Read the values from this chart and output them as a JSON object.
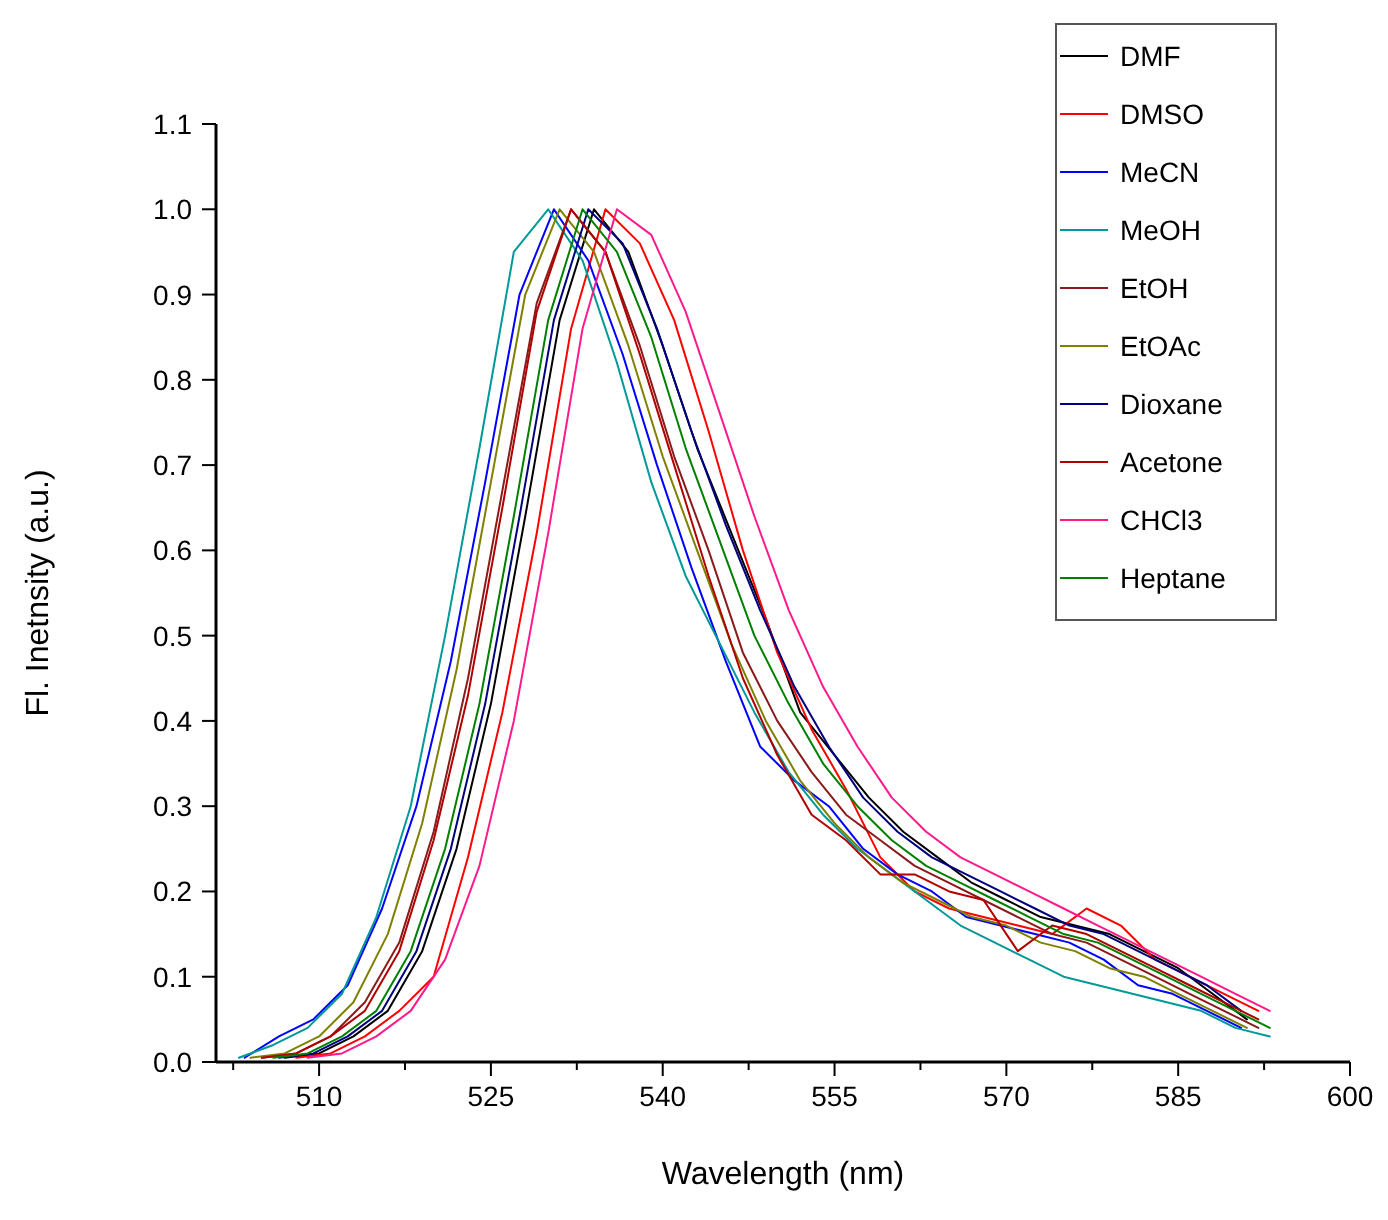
{
  "chart_data": {
    "type": "line",
    "xlabel": "Wavelength (nm)",
    "ylabel": "Fl. Inetnsity (a.u.)",
    "xlim": [
      501,
      600
    ],
    "ylim": [
      0,
      1.1
    ],
    "xticks": [
      {
        "value": 502.5,
        "label": null
      },
      510,
      {
        "value": 517.5,
        "label": null
      },
      525,
      {
        "value": 532.5,
        "label": null
      },
      540,
      {
        "value": 547.5,
        "label": null
      },
      555,
      {
        "value": 562.5,
        "label": null
      },
      570,
      {
        "value": 577.5,
        "label": null
      },
      585,
      {
        "value": 592.5,
        "label": null
      },
      600
    ],
    "yticks": [
      {
        "value": 0,
        "label": "0.0"
      },
      0.1,
      0.2,
      0.3,
      0.4,
      0.5,
      0.6,
      0.7,
      0.8,
      0.9,
      {
        "value": 1,
        "label": "1.0"
      },
      1.1
    ],
    "grid": false,
    "legend": "top right",
    "line_style": "solid",
    "series": [
      {
        "name": "DMF",
        "color": "#000000",
        "x": [
          507,
          510,
          513,
          516,
          519,
          522,
          525,
          528,
          531,
          534,
          537,
          540,
          543,
          546,
          549,
          552,
          555,
          558,
          561,
          564,
          567,
          570,
          573,
          576,
          579,
          582,
          585,
          588,
          591
        ],
        "values": [
          0.005,
          0.01,
          0.03,
          0.06,
          0.13,
          0.25,
          0.42,
          0.64,
          0.87,
          1.0,
          0.95,
          0.84,
          0.72,
          0.62,
          0.52,
          0.41,
          0.36,
          0.31,
          0.27,
          0.24,
          0.21,
          0.19,
          0.17,
          0.16,
          0.15,
          0.13,
          0.11,
          0.08,
          0.05
        ]
      },
      {
        "name": "DMSO",
        "color": "#ff0000",
        "x": [
          508,
          511,
          514,
          517,
          520,
          523,
          526,
          529,
          532,
          535,
          538,
          541,
          544,
          547,
          550,
          553,
          556,
          559,
          562,
          565,
          568,
          571,
          574,
          577,
          580,
          583,
          586,
          589,
          592
        ],
        "values": [
          0.005,
          0.01,
          0.03,
          0.06,
          0.1,
          0.24,
          0.41,
          0.62,
          0.86,
          1.0,
          0.96,
          0.87,
          0.74,
          0.6,
          0.48,
          0.39,
          0.32,
          0.24,
          0.2,
          0.18,
          0.17,
          0.16,
          0.15,
          0.18,
          0.16,
          0.12,
          0.1,
          0.08,
          0.06
        ]
      },
      {
        "name": "MeCN",
        "color": "#0000ff",
        "x": [
          503.5,
          506.5,
          509.5,
          512.5,
          515.5,
          518.5,
          521.5,
          524.5,
          527.5,
          530.5,
          533.5,
          536.5,
          539.5,
          542.5,
          545.5,
          548.5,
          551.5,
          554.5,
          557.5,
          560.5,
          563.5,
          566.5,
          569.5,
          572.5,
          575.5,
          578.5,
          581.5,
          584.5,
          587.5,
          590.5
        ],
        "values": [
          0.005,
          0.03,
          0.05,
          0.09,
          0.18,
          0.3,
          0.47,
          0.68,
          0.9,
          1.0,
          0.94,
          0.83,
          0.7,
          0.58,
          0.47,
          0.37,
          0.33,
          0.3,
          0.25,
          0.22,
          0.2,
          0.17,
          0.16,
          0.15,
          0.14,
          0.12,
          0.09,
          0.08,
          0.06,
          0.04
        ]
      },
      {
        "name": "MeOH",
        "color": "#009999",
        "x": [
          503,
          506,
          509,
          512,
          515,
          518,
          521,
          524,
          527,
          530,
          533,
          536,
          539,
          542,
          545,
          548,
          551,
          554,
          557,
          560,
          563,
          566,
          569,
          572,
          575,
          578,
          581,
          584,
          587,
          590,
          593
        ],
        "values": [
          0.005,
          0.02,
          0.04,
          0.08,
          0.17,
          0.3,
          0.5,
          0.72,
          0.95,
          1.0,
          0.94,
          0.82,
          0.68,
          0.57,
          0.49,
          0.41,
          0.34,
          0.29,
          0.25,
          0.22,
          0.19,
          0.16,
          0.14,
          0.12,
          0.1,
          0.09,
          0.08,
          0.07,
          0.06,
          0.04,
          0.03
        ]
      },
      {
        "name": "EtOH",
        "color": "#8b1a1a",
        "x": [
          505,
          508,
          511,
          514,
          517,
          520,
          523,
          526,
          529,
          532,
          535,
          538,
          541,
          544,
          547,
          550,
          553,
          556,
          559,
          562,
          565,
          568,
          571,
          574,
          577,
          580,
          583,
          586,
          589,
          592
        ],
        "values": [
          0.005,
          0.01,
          0.03,
          0.07,
          0.14,
          0.27,
          0.45,
          0.67,
          0.89,
          1.0,
          0.95,
          0.84,
          0.71,
          0.6,
          0.48,
          0.4,
          0.34,
          0.29,
          0.26,
          0.23,
          0.21,
          0.19,
          0.17,
          0.15,
          0.14,
          0.12,
          0.1,
          0.08,
          0.06,
          0.04
        ]
      },
      {
        "name": "EtOAc",
        "color": "#808000",
        "x": [
          504,
          507,
          510,
          513,
          516,
          519,
          522,
          525,
          528,
          531,
          534,
          537,
          540,
          543,
          546,
          549,
          552,
          555,
          558,
          561,
          564,
          567,
          570,
          573,
          576,
          579,
          582,
          585,
          588,
          591
        ],
        "values": [
          0.005,
          0.01,
          0.03,
          0.07,
          0.15,
          0.28,
          0.46,
          0.68,
          0.9,
          1.0,
          0.95,
          0.84,
          0.71,
          0.6,
          0.49,
          0.4,
          0.33,
          0.28,
          0.24,
          0.21,
          0.19,
          0.17,
          0.16,
          0.14,
          0.13,
          0.11,
          0.1,
          0.08,
          0.06,
          0.04
        ]
      },
      {
        "name": "Dioxane",
        "color": "#000080",
        "x": [
          506.5,
          509.5,
          512.5,
          515.5,
          518.5,
          521.5,
          524.5,
          527.5,
          530.5,
          533.5,
          536.5,
          539.5,
          542.5,
          545.5,
          548.5,
          551.5,
          554.5,
          557.5,
          560.5,
          563.5,
          566.5,
          569.5,
          572.5,
          575.5,
          578.5,
          581.5,
          584.5,
          587.5,
          590.5
        ],
        "values": [
          0.005,
          0.01,
          0.03,
          0.06,
          0.13,
          0.25,
          0.42,
          0.64,
          0.87,
          1.0,
          0.96,
          0.86,
          0.74,
          0.63,
          0.53,
          0.44,
          0.37,
          0.31,
          0.27,
          0.24,
          0.22,
          0.2,
          0.18,
          0.16,
          0.15,
          0.13,
          0.11,
          0.09,
          0.06
        ]
      },
      {
        "name": "Acetone",
        "color": "#b00000",
        "x": [
          505,
          508,
          511,
          514,
          517,
          520,
          523,
          526,
          529,
          532,
          535,
          538,
          541,
          544,
          547,
          550,
          553,
          556,
          559,
          562,
          565,
          568,
          571,
          574,
          577,
          580,
          583,
          586,
          589,
          592
        ],
        "values": [
          0.005,
          0.01,
          0.03,
          0.06,
          0.13,
          0.26,
          0.43,
          0.65,
          0.88,
          1.0,
          0.95,
          0.83,
          0.7,
          0.57,
          0.45,
          0.36,
          0.29,
          0.26,
          0.22,
          0.22,
          0.2,
          0.19,
          0.13,
          0.16,
          0.15,
          0.13,
          0.11,
          0.09,
          0.07,
          0.05
        ]
      },
      {
        "name": "CHCl3",
        "color": "#ff1a8c",
        "x": [
          509,
          512,
          515,
          518,
          521,
          524,
          527,
          530,
          533,
          536,
          539,
          542,
          545,
          548,
          551,
          554,
          557,
          560,
          563,
          566,
          569,
          572,
          575,
          578,
          581,
          584,
          587,
          590,
          593
        ],
        "values": [
          0.005,
          0.01,
          0.03,
          0.06,
          0.12,
          0.23,
          0.4,
          0.62,
          0.86,
          1.0,
          0.97,
          0.88,
          0.76,
          0.64,
          0.53,
          0.44,
          0.37,
          0.31,
          0.27,
          0.24,
          0.22,
          0.2,
          0.18,
          0.16,
          0.14,
          0.12,
          0.1,
          0.08,
          0.06
        ]
      },
      {
        "name": "Heptane",
        "color": "#008000",
        "x": [
          506,
          509,
          512,
          515,
          518,
          521,
          524,
          527,
          530,
          533,
          536,
          539,
          542,
          545,
          548,
          551,
          554,
          557,
          560,
          563,
          566,
          569,
          572,
          575,
          578,
          581,
          584,
          587,
          590,
          593
        ],
        "values": [
          0.005,
          0.01,
          0.03,
          0.06,
          0.13,
          0.25,
          0.42,
          0.64,
          0.87,
          1.0,
          0.95,
          0.85,
          0.72,
          0.61,
          0.5,
          0.42,
          0.35,
          0.3,
          0.26,
          0.23,
          0.21,
          0.19,
          0.17,
          0.15,
          0.14,
          0.12,
          0.1,
          0.08,
          0.06,
          0.04
        ]
      }
    ]
  }
}
